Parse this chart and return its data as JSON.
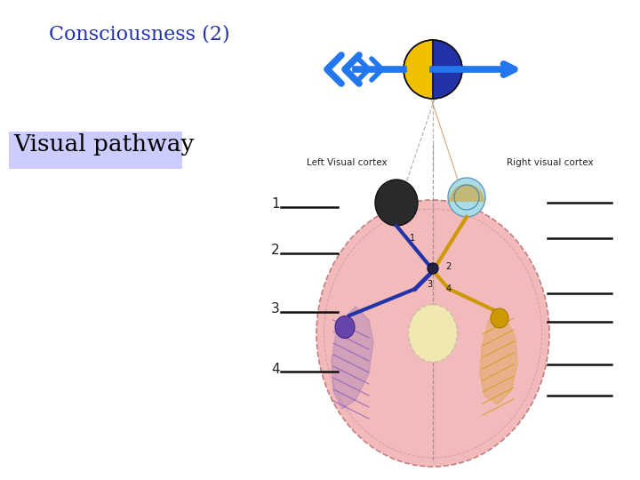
{
  "title": "Consciousness (2)",
  "subtitle": "Visual pathway",
  "title_color": "#2233aa",
  "subtitle_bg": "#ccccff",
  "bg_color": "#ffffff",
  "brain_color": "#f2baba",
  "brain_outline": "#c08080",
  "arrow_color": "#2277ee",
  "ball_yellow": "#f0c000",
  "ball_blue": "#2233aa",
  "label_numbers": [
    "1",
    "2",
    "3",
    "4"
  ],
  "left_cortex_label": "Left Visual cortex",
  "right_cortex_label": "Right visual cortex",
  "nerve_gold": "#cc9900",
  "nerve_blue": "#2233aa",
  "lvc_purple": "#7755bb",
  "rvc_gold": "#cc9900",
  "spinal_cream": "#f0e8b0",
  "spinal_outline": "#ccbbaa"
}
